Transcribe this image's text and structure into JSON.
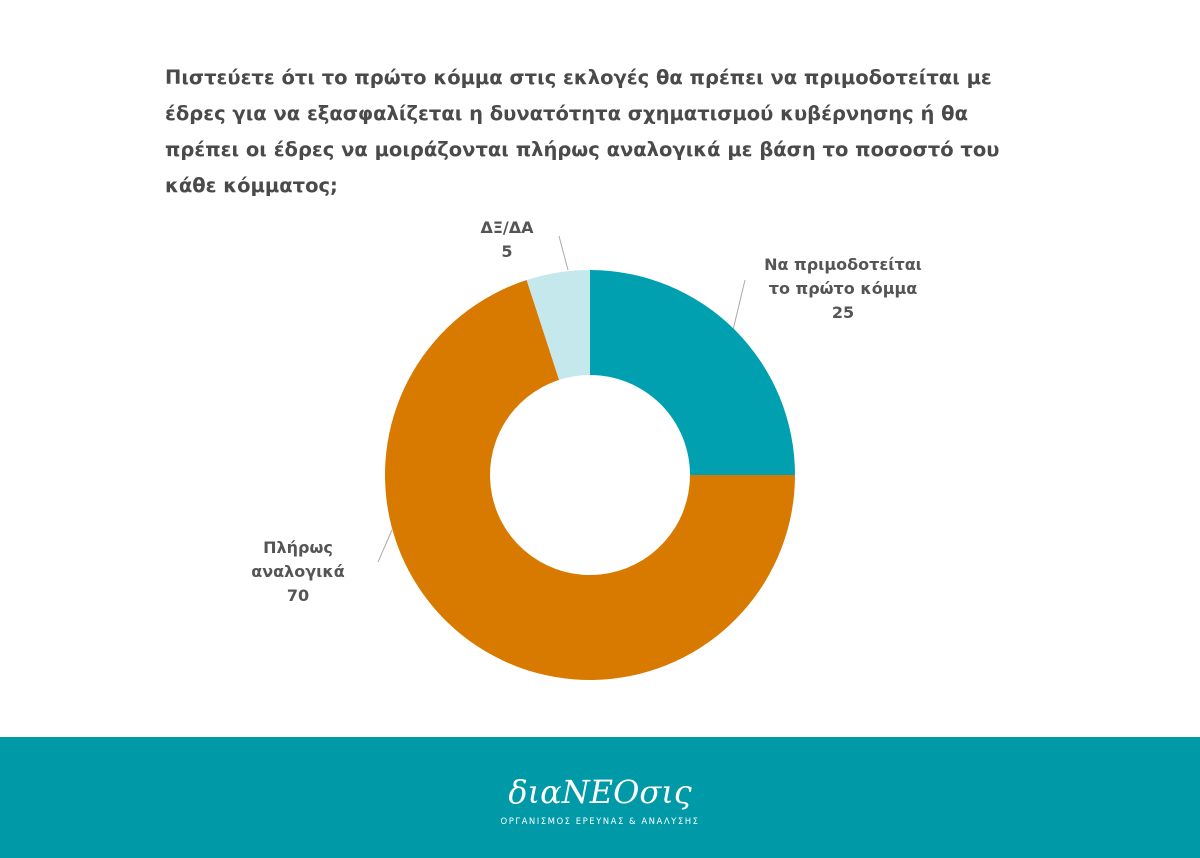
{
  "chart_data": {
    "type": "donut",
    "title": "Πιστεύετε ότι το πρώτο κόμμα στις εκλογές θα πρέπει να πριμοδοτείται με έδρες για να εξασφαλίζεται η δυνατότητα σχηματισμού κυβέρνησης ή θα πρέπει οι έδρες να μοιράζονται πλήρως αναλογικά με βάση το ποσοστό του κάθε κόμματος;",
    "categories": [
      "Να πριμοδοτείται το πρώτο κόμμα",
      "Πλήρως αναλογικά",
      "ΔΞ/ΔΑ"
    ],
    "values": [
      25,
      70,
      5
    ],
    "colors": [
      "#00a0b0",
      "#d97a00",
      "#c5e8ec"
    ]
  },
  "footer": {
    "logo": "διαΝΕΟσις",
    "tagline": "ΟΡΓΑΝΙΣΜΟΣ ΕΡΕΥΝΑΣ & ΑΝΑΛΥΣΗΣ"
  }
}
